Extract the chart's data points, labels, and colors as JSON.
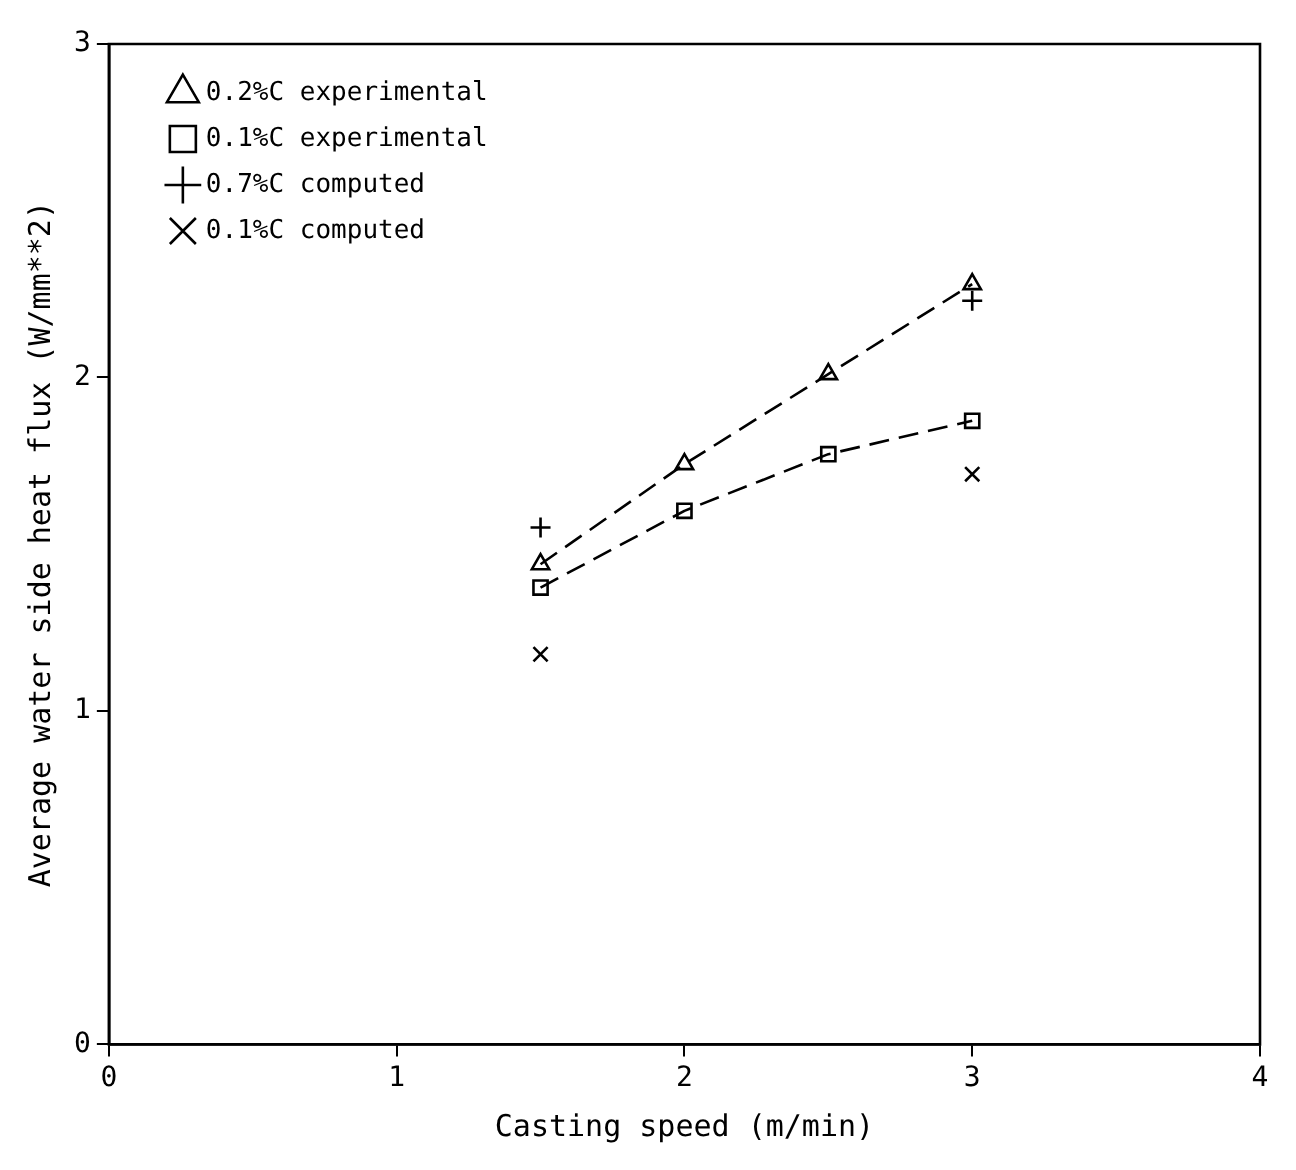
{
  "chart_data": {
    "type": "line",
    "xlabel": "Casting speed (m/min)",
    "ylabel": "Average water side heat flux (W/mm**2)",
    "xlim": [
      0,
      4
    ],
    "xticks": [
      0,
      1,
      2,
      3,
      4
    ],
    "ylim": [
      0,
      3
    ],
    "yticks": [
      0,
      1,
      2,
      3
    ],
    "grid": false,
    "legend": "top left",
    "series": [
      {
        "name": "0.2%C experimental",
        "color": "#000000",
        "marker": "triangle",
        "line_style": "dashed",
        "x": [
          1.5,
          2,
          2.5,
          3
        ],
        "values": [
          1.44,
          1.74,
          2.01,
          2.28
        ]
      },
      {
        "name": "0.1%C experimental",
        "color": "#000000",
        "marker": "square",
        "line_style": "dashed",
        "x": [
          1.5,
          2,
          2.5,
          3
        ],
        "values": [
          1.37,
          1.6,
          1.77,
          1.87
        ]
      },
      {
        "name": "0.7%C computed",
        "type": "scatter",
        "color": "#000000",
        "marker": "cross",
        "x": [
          1.5,
          3
        ],
        "values": [
          1.55,
          2.23
        ]
      },
      {
        "name": "0.1%C computed",
        "type": "scatter",
        "color": "#000000",
        "marker": "x",
        "x": [
          1.5,
          3
        ],
        "values": [
          1.17,
          1.71
        ]
      }
    ]
  }
}
